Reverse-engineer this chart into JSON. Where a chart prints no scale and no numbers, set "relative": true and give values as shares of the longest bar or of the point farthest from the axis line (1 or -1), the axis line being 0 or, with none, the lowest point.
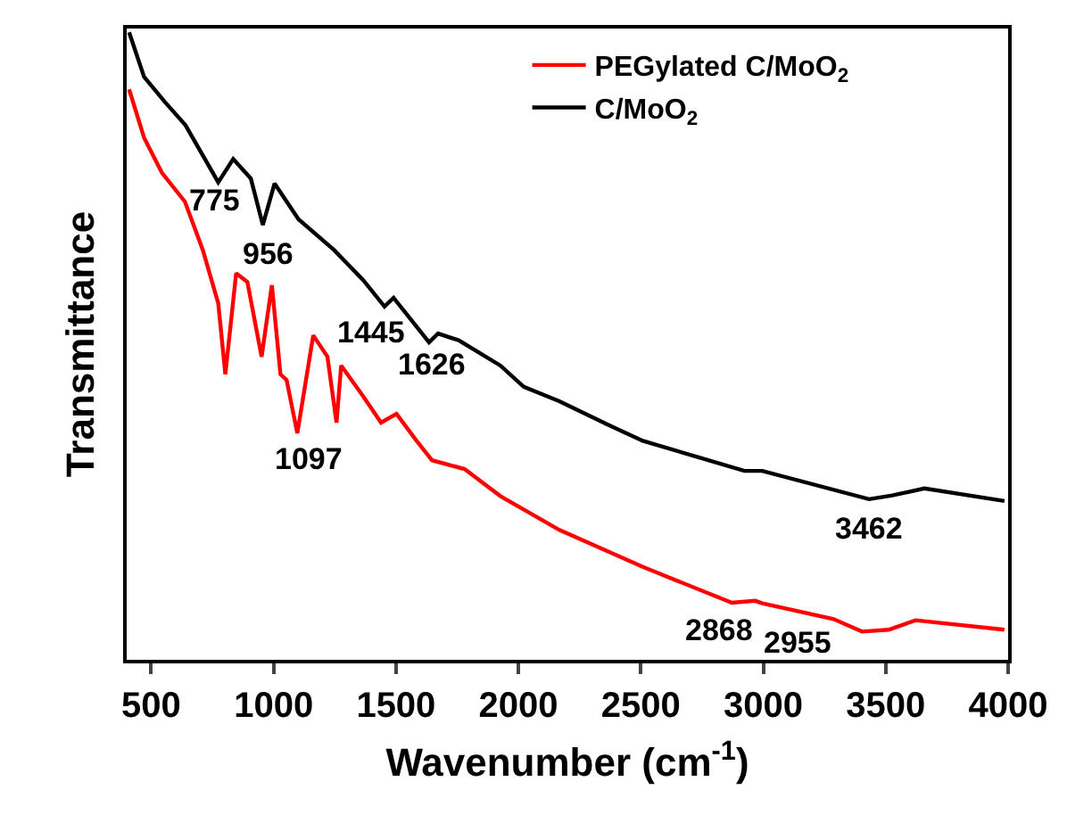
{
  "chart_data": {
    "type": "line",
    "relative": true,
    "xlabel": "Wavenumber (cm$^{-1}$)",
    "ylabel": "Transmittance",
    "xlim": [
      400,
      4000
    ],
    "xticks": [
      500,
      1000,
      1500,
      2000,
      2500,
      3000,
      3500,
      4000
    ],
    "legend": "top right",
    "marker": "none",
    "line_style": "solid",
    "series": [
      {
        "name": "PEGylated C/MoO$_{2}$",
        "color": "#ff0000",
        "x": [
          410,
          471,
          544,
          638,
          711,
          774,
          803,
          847,
          893,
          951,
          993,
          1028,
          1053,
          1097,
          1162,
          1220,
          1257,
          1276,
          1366,
          1439,
          1502,
          1584,
          1647,
          1780,
          1926,
          2167,
          2508,
          2872,
          2967,
          2996,
          3287,
          3403,
          3512,
          3622,
          3985
        ],
        "values": [
          0.909,
          0.832,
          0.776,
          0.73,
          0.653,
          0.568,
          0.455,
          0.616,
          0.602,
          0.483,
          0.597,
          0.455,
          0.446,
          0.361,
          0.517,
          0.483,
          0.378,
          0.469,
          0.42,
          0.378,
          0.392,
          0.349,
          0.318,
          0.304,
          0.261,
          0.207,
          0.148,
          0.091,
          0.094,
          0.09,
          0.065,
          0.045,
          0.048,
          0.063,
          0.048
        ]
      },
      {
        "name": "C/MoO$_{2}$",
        "color": "#000000",
        "x": [
          410,
          471,
          556,
          640,
          774,
          835,
          907,
          956,
          1004,
          1102,
          1247,
          1366,
          1453,
          1490,
          1635,
          1672,
          1757,
          1926,
          2022,
          2167,
          2363,
          2508,
          2923,
          2996,
          3432,
          3527,
          3658,
          3985
        ],
        "values": [
          1.0,
          0.929,
          0.889,
          0.852,
          0.761,
          0.798,
          0.767,
          0.693,
          0.759,
          0.702,
          0.653,
          0.605,
          0.563,
          0.577,
          0.506,
          0.52,
          0.509,
          0.469,
          0.435,
          0.412,
          0.375,
          0.349,
          0.301,
          0.301,
          0.256,
          0.262,
          0.273,
          0.253
        ]
      }
    ],
    "annotations": [
      {
        "text": "775",
        "x": 774,
        "y": 0.761
      },
      {
        "text": "956",
        "x": 956,
        "y": 0.693
      },
      {
        "text": "1445",
        "x": 1453,
        "y": 0.563
      },
      {
        "text": "1626",
        "x": 1635,
        "y": 0.506
      },
      {
        "text": "1097",
        "x": 1097,
        "y": 0.361
      },
      {
        "text": "3462",
        "x": 3432,
        "y": 0.256
      },
      {
        "text": "2868",
        "x": 2872,
        "y": 0.091
      },
      {
        "text": "2955",
        "x": 2967,
        "y": 0.094
      }
    ]
  }
}
